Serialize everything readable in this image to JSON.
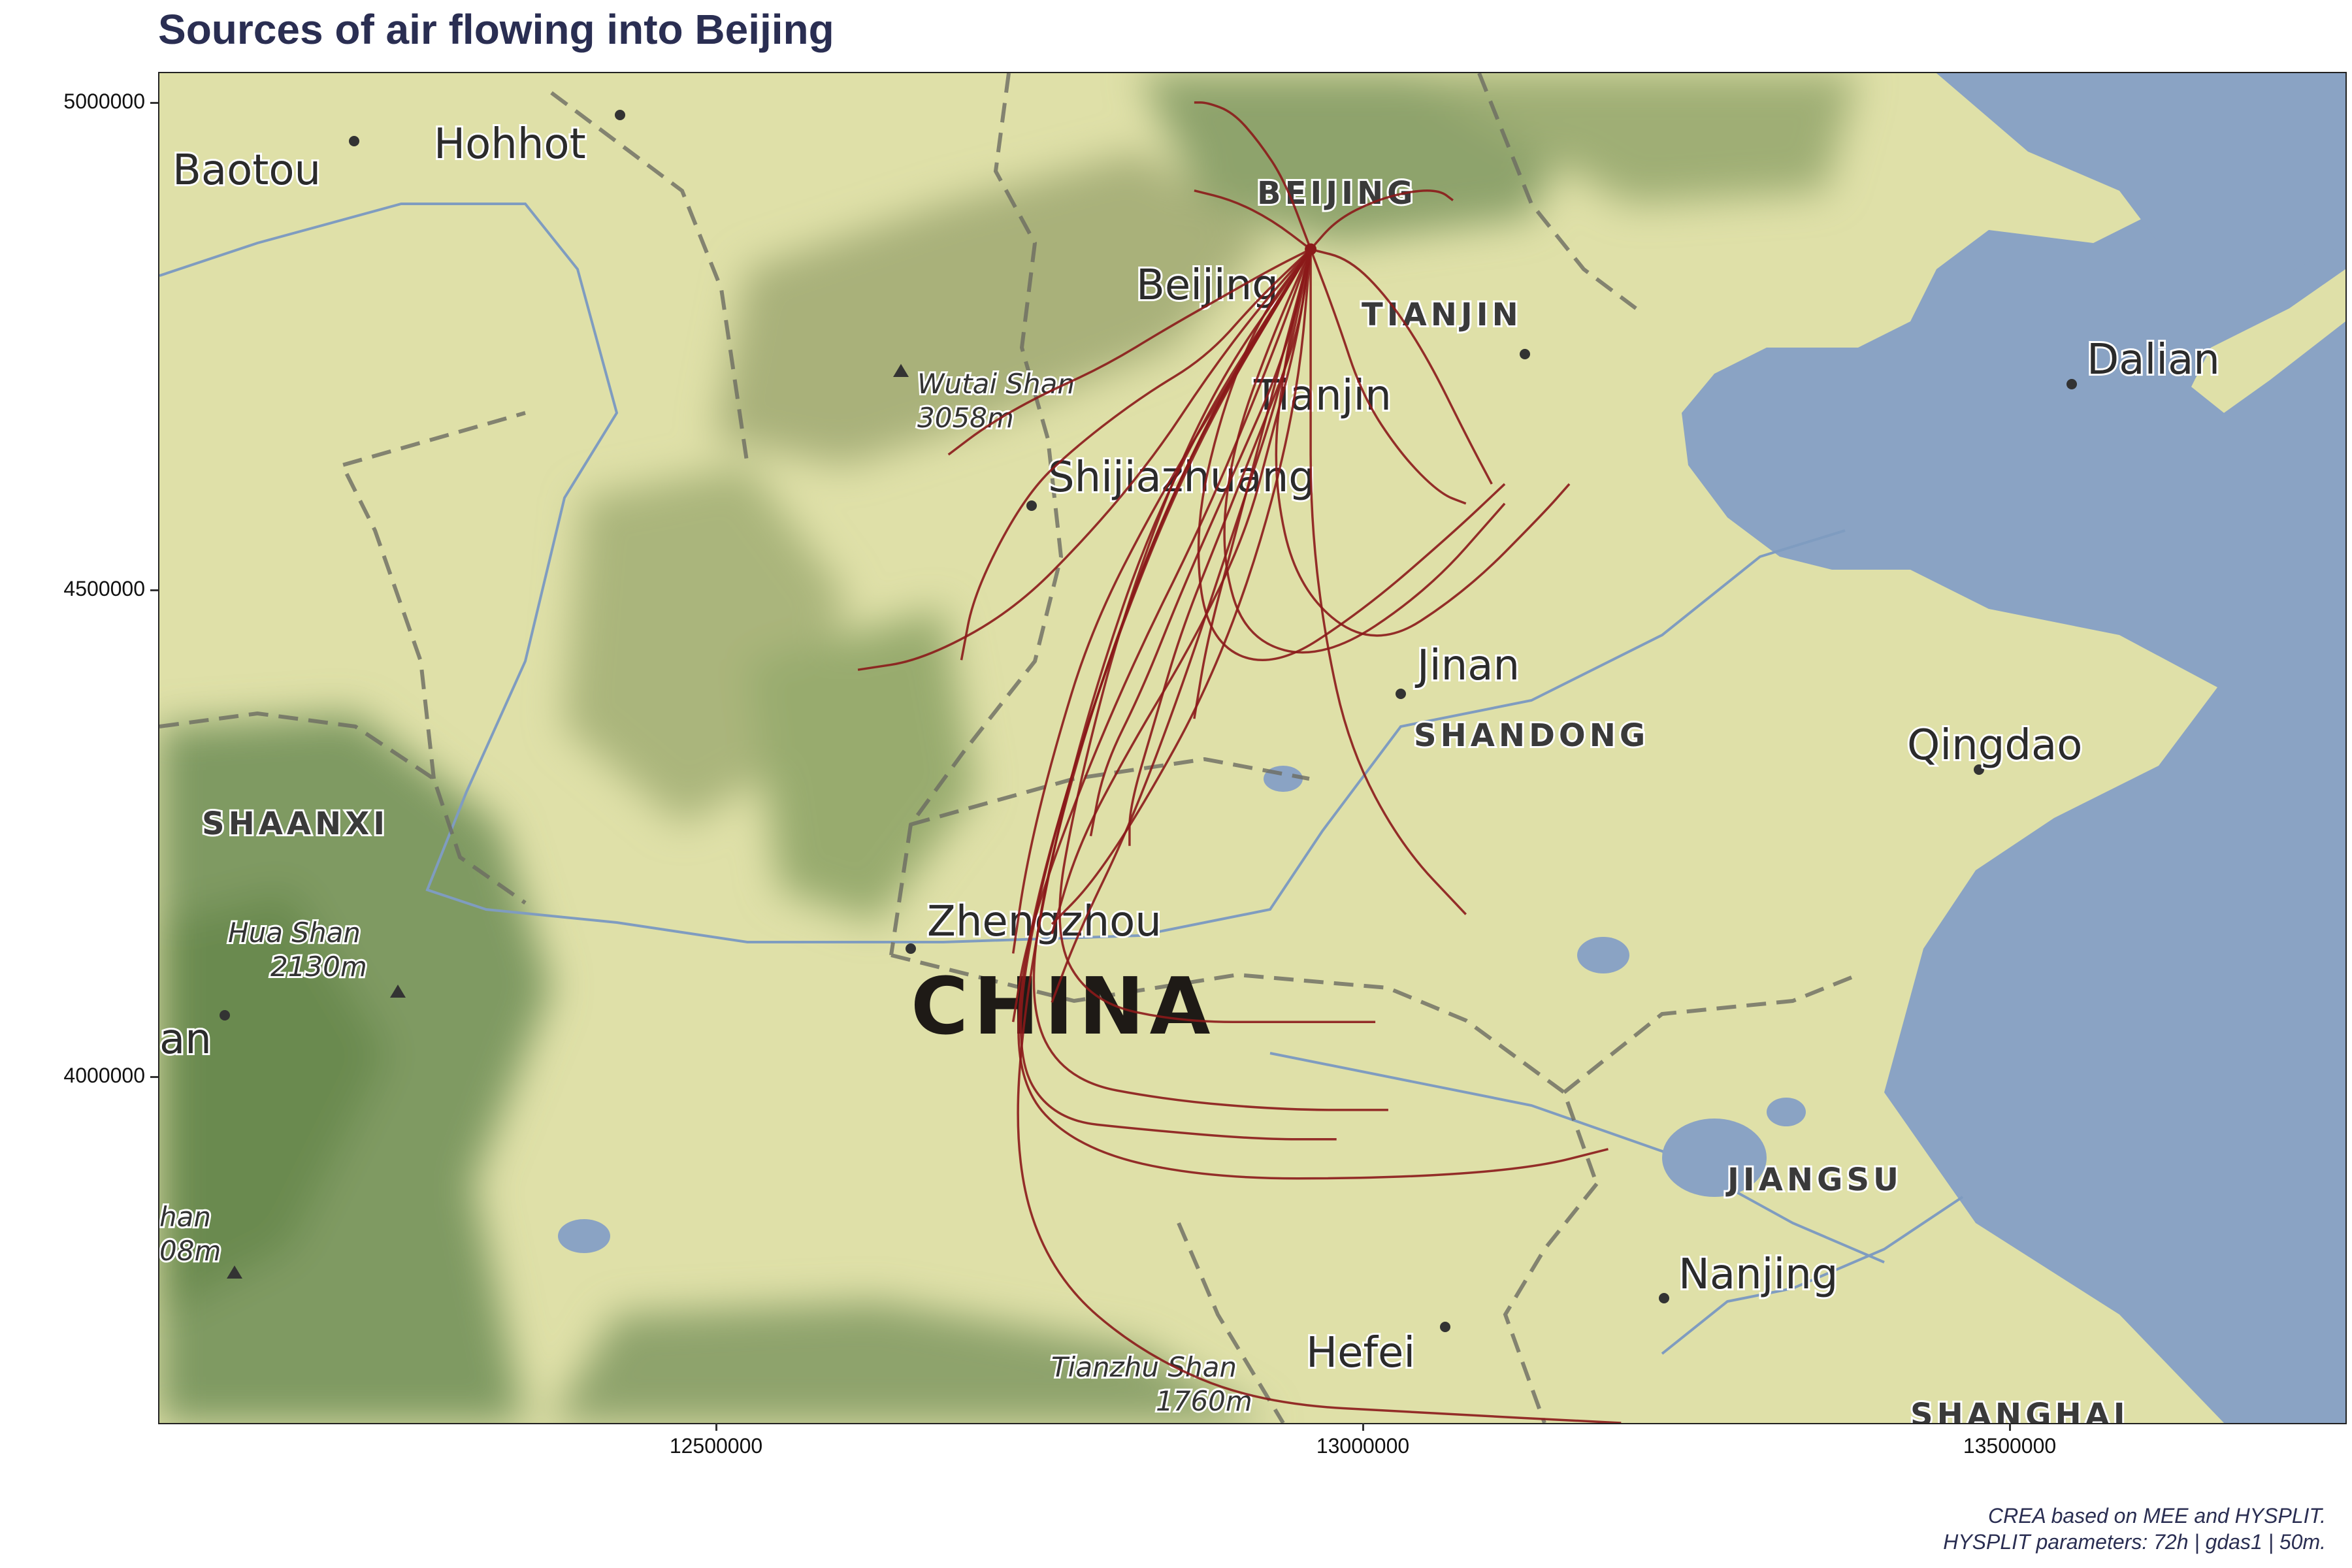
{
  "title": "Sources of air flowing into Beijing",
  "caption": {
    "line1": "CREA based on MEE and HYSPLIT.",
    "line2": "HYSPLIT parameters: 72h | gdas1 | 50m."
  },
  "axes": {
    "x_ticks": [
      "12500000",
      "13000000",
      "13500000"
    ],
    "y_ticks": [
      "5000000",
      "4500000",
      "4000000"
    ]
  },
  "map_labels": {
    "cities": [
      "Baotou",
      "Hohhot",
      "Beijing",
      "Tianjin",
      "Shijiazhuang",
      "Jinan",
      "Qingdao",
      "Dalian",
      "Zhengzhou",
      "Nanjing",
      "Hefei",
      "an"
    ],
    "provinces": [
      "BEIJING",
      "TIANJIN",
      "SHANDONG",
      "SHAANXI",
      "JIANGSU",
      "SHANGHAI"
    ],
    "country": "CHINA",
    "peaks": [
      {
        "name": "Wutai Shan",
        "elev": "3058m"
      },
      {
        "name": "Hua Shan",
        "elev": "2130m"
      },
      {
        "name": "Tianzhu Shan",
        "elev": "1760m"
      },
      {
        "name": "han",
        "elev": "08m"
      }
    ]
  },
  "colors": {
    "trajectory": "#8b1a1a",
    "sea": "#8aa3c4",
    "land": "#dfe0a8",
    "mountain": "#7f9a62",
    "title": "#2a2e52"
  },
  "chart_data": {
    "type": "line",
    "xlim": [
      12070000,
      13760000
    ],
    "ylim": [
      3650000,
      5030000
    ],
    "receptor": [
      12960000,
      4850000
    ],
    "series": [
      {
        "x": [
          12960000,
          12930000,
          12890000,
          12850000,
          12800000,
          12750000,
          12710000,
          12680000
        ],
        "y": [
          4850000,
          4830000,
          4800000,
          4770000,
          4730000,
          4700000,
          4670000,
          4640000
        ]
      },
      {
        "x": [
          12960000,
          12920000,
          12880000,
          12830000,
          12780000,
          12740000,
          12700000,
          12690000
        ],
        "y": [
          4850000,
          4800000,
          4740000,
          4700000,
          4650000,
          4600000,
          4500000,
          4430000
        ]
      },
      {
        "x": [
          12960000,
          12920000,
          12880000,
          12840000,
          12790000,
          12730000,
          12660000,
          12610000
        ],
        "y": [
          4850000,
          4790000,
          4720000,
          4640000,
          4560000,
          4480000,
          4430000,
          4420000
        ]
      },
      {
        "x": [
          12960000,
          12940000,
          12920000,
          12900000,
          12880000,
          12870000
        ],
        "y": [
          4850000,
          4920000,
          4960000,
          4990000,
          5000000,
          5000000
        ]
      },
      {
        "x": [
          12960000,
          12930000,
          12900000,
          12870000
        ],
        "y": [
          4850000,
          4880000,
          4900000,
          4910000
        ]
      },
      {
        "x": [
          12960000,
          12980000,
          13010000,
          13040000,
          13060000,
          13070000
        ],
        "y": [
          4850000,
          4880000,
          4900000,
          4910000,
          4910000,
          4900000
        ]
      },
      {
        "x": [
          12960000,
          12990000,
          13020000,
          13050000,
          13080000,
          13100000
        ],
        "y": [
          4850000,
          4840000,
          4800000,
          4740000,
          4660000,
          4610000
        ]
      },
      {
        "x": [
          12960000,
          12950000,
          12920000,
          12890000,
          12860000,
          12840000,
          12820000,
          12820000
        ],
        "y": [
          4850000,
          4760000,
          4660000,
          4560000,
          4460000,
          4370000,
          4280000,
          4240000
        ]
      },
      {
        "x": [
          12960000,
          12940000,
          12900000,
          12860000,
          12830000,
          12800000,
          12790000
        ],
        "y": [
          4850000,
          4740000,
          4620000,
          4500000,
          4400000,
          4320000,
          4250000
        ]
      },
      {
        "x": [
          12960000,
          12960000,
          12960000,
          12970000,
          12990000,
          13030000,
          13080000
        ],
        "y": [
          4850000,
          4700000,
          4580000,
          4460000,
          4340000,
          4240000,
          4170000
        ]
      },
      {
        "x": [
          12960000,
          12940000,
          12920000,
          12900000,
          12880000,
          12870000
        ],
        "y": [
          4850000,
          4750000,
          4650000,
          4550000,
          4450000,
          4370000
        ]
      },
      {
        "x": [
          12960000,
          12950000,
          12930000,
          12910000,
          12870000,
          12820000,
          12780000,
          12760000
        ],
        "y": [
          4850000,
          4760000,
          4660000,
          4560000,
          4450000,
          4340000,
          4240000,
          4150000
        ]
      },
      {
        "x": [
          12960000,
          12940000,
          12900000,
          12860000,
          12820000,
          12780000,
          12760000
        ],
        "y": [
          4850000,
          4720000,
          4560000,
          4400000,
          4260000,
          4150000,
          4080000
        ]
      },
      {
        "x": [
          12960000,
          12930000,
          12880000,
          12820000,
          12770000,
          12740000,
          12730000
        ],
        "y": [
          4850000,
          4740000,
          4580000,
          4420000,
          4260000,
          4140000,
          4060000
        ]
      },
      {
        "x": [
          12960000,
          12900000,
          12840000,
          12790000,
          12760000,
          12740000,
          12730000
        ],
        "y": [
          4850000,
          4720000,
          4590000,
          4460000,
          4330000,
          4220000,
          4130000
        ]
      },
      {
        "x": [
          12960000,
          12950000,
          12920000,
          12880000,
          12830000,
          12790000,
          12760000
        ],
        "y": [
          4850000,
          4700000,
          4540000,
          4400000,
          4280000,
          4200000,
          4160000
        ]
      },
      {
        "x": [
          12960000,
          12880000,
          12820000,
          12780000,
          12760000,
          12790000,
          12860000,
          12940000,
          13010000
        ],
        "y": [
          4850000,
          4700000,
          4500000,
          4300000,
          4150000,
          4080000,
          4060000,
          4060000,
          4060000
        ]
      },
      {
        "x": [
          12960000,
          12880000,
          12810000,
          12760000,
          12740000,
          12770000,
          12850000,
          12940000,
          13020000
        ],
        "y": [
          4850000,
          4680000,
          4460000,
          4240000,
          4080000,
          4000000,
          3980000,
          3970000,
          3970000
        ]
      },
      {
        "x": [
          12960000,
          12870000,
          12800000,
          12750000,
          12730000,
          12760000,
          12830000,
          12920000,
          12980000
        ],
        "y": [
          4850000,
          4650000,
          4420000,
          4200000,
          4030000,
          3960000,
          3950000,
          3940000,
          3940000
        ]
      },
      {
        "x": [
          12960000,
          12860000,
          12790000,
          12740000,
          12730000,
          12780000,
          12880000,
          13020000,
          13130000,
          13190000
        ],
        "y": [
          4850000,
          4630000,
          4380000,
          4150000,
          4000000,
          3930000,
          3900000,
          3900000,
          3910000,
          3930000
        ]
      },
      {
        "x": [
          12960000,
          12850000,
          12780000,
          12740000,
          12730000,
          12760000,
          12830000,
          12920000,
          13050000,
          13200000
        ],
        "y": [
          4850000,
          4620000,
          4350000,
          4100000,
          3920000,
          3800000,
          3720000,
          3670000,
          3660000,
          3650000
        ]
      },
      {
        "x": [
          12960000,
          12980000,
          13000000,
          13030000,
          13060000,
          13080000
        ],
        "y": [
          4850000,
          4780000,
          4700000,
          4640000,
          4600000,
          4590000
        ]
      },
      {
        "x": [
          12960000,
          12920000,
          12890000,
          12870000,
          12880000,
          12930000,
          13000000,
          13070000,
          13110000
        ],
        "y": [
          4850000,
          4780000,
          4680000,
          4560000,
          4450000,
          4420000,
          4480000,
          4560000,
          4610000
        ]
      },
      {
        "x": [
          12960000,
          12930000,
          12900000,
          12890000,
          12910000,
          12970000,
          13050000,
          13110000
        ],
        "y": [
          4850000,
          4760000,
          4650000,
          4540000,
          4450000,
          4430000,
          4500000,
          4590000
        ]
      },
      {
        "x": [
          12960000,
          12940000,
          12930000,
          12950000,
          13010000,
          13080000,
          13140000,
          13160000
        ],
        "y": [
          4850000,
          4740000,
          4620000,
          4500000,
          4440000,
          4500000,
          4580000,
          4610000
        ]
      }
    ]
  }
}
